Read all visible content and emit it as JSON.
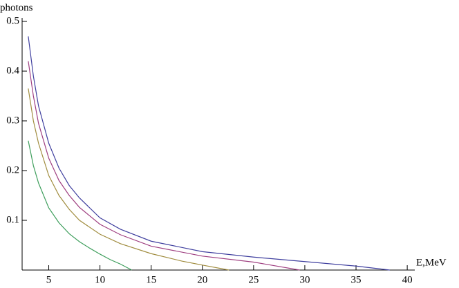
{
  "chart_data": {
    "type": "line",
    "xlabel": "E,MeV",
    "ylabel": "photons",
    "xlim": [
      2.4,
      40.6
    ],
    "ylim": [
      0,
      0.5
    ],
    "xticks": [
      5,
      10,
      15,
      20,
      25,
      30,
      35,
      40
    ],
    "yticks": [
      0.1,
      0.2,
      0.3,
      0.4,
      0.5
    ],
    "series": [
      {
        "color": "#3e3e9e",
        "x": [
          3,
          3.5,
          4,
          5,
          6,
          7,
          8,
          10,
          12,
          15,
          20,
          25,
          30,
          35,
          38.3
        ],
        "values": [
          0.47,
          0.39,
          0.33,
          0.255,
          0.205,
          0.17,
          0.145,
          0.105,
          0.082,
          0.058,
          0.037,
          0.026,
          0.017,
          0.008,
          0
        ]
      },
      {
        "color": "#9e3e80",
        "x": [
          3,
          3.5,
          4,
          5,
          6,
          7,
          8,
          10,
          12,
          15,
          20,
          25,
          29.5
        ],
        "values": [
          0.42,
          0.35,
          0.295,
          0.225,
          0.18,
          0.15,
          0.126,
          0.092,
          0.071,
          0.048,
          0.028,
          0.016,
          0
        ]
      },
      {
        "color": "#a08c3e",
        "x": [
          3,
          3.5,
          4,
          5,
          6,
          7,
          8,
          10,
          12,
          15,
          18,
          20,
          22.6
        ],
        "values": [
          0.365,
          0.3,
          0.255,
          0.19,
          0.15,
          0.122,
          0.1,
          0.072,
          0.053,
          0.033,
          0.018,
          0.01,
          0
        ]
      },
      {
        "color": "#3e9e5c",
        "x": [
          3,
          3.5,
          4,
          5,
          6,
          7,
          8,
          9,
          10,
          11,
          12,
          13.1
        ],
        "values": [
          0.26,
          0.21,
          0.175,
          0.125,
          0.095,
          0.073,
          0.057,
          0.044,
          0.032,
          0.021,
          0.012,
          0
        ]
      }
    ]
  }
}
